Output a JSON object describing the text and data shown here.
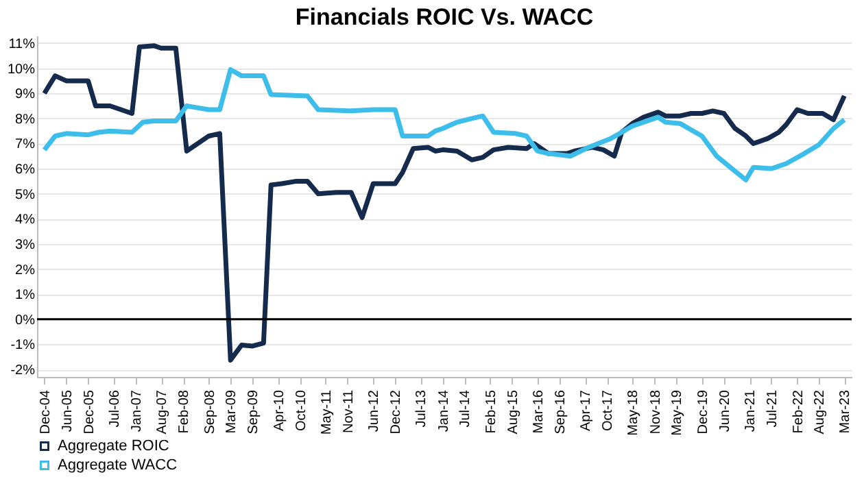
{
  "chart_data": {
    "type": "line",
    "title": "Financials ROIC Vs. WACC",
    "series": [
      {
        "name": "Aggregate ROIC",
        "color": "#152b4e",
        "x": [
          "2004-12",
          "2005-03",
          "2005-06",
          "2005-12",
          "2006-02",
          "2006-06",
          "2006-12",
          "2007-02",
          "2007-06",
          "2007-08",
          "2007-12",
          "2008-03",
          "2008-05",
          "2008-09",
          "2008-12",
          "2009-03",
          "2009-06",
          "2009-09",
          "2009-12",
          "2010-02",
          "2010-05",
          "2010-09",
          "2010-12",
          "2011-03",
          "2011-08",
          "2011-12",
          "2012-03",
          "2012-06",
          "2012-12",
          "2013-02",
          "2013-05",
          "2013-09",
          "2013-11",
          "2014-01",
          "2014-05",
          "2014-09",
          "2014-12",
          "2015-03",
          "2015-07",
          "2015-12",
          "2016-02",
          "2016-06",
          "2016-11",
          "2017-01",
          "2017-06",
          "2017-09",
          "2017-12",
          "2018-02",
          "2018-05",
          "2018-08",
          "2018-12",
          "2019-02",
          "2019-06",
          "2019-09",
          "2019-12",
          "2020-03",
          "2020-06",
          "2020-09",
          "2020-12",
          "2021-02",
          "2021-06",
          "2021-09",
          "2021-11",
          "2022-02",
          "2022-05",
          "2022-09",
          "2022-12",
          "2023-03"
        ],
        "values": [
          9.0,
          9.7,
          9.5,
          9.5,
          8.5,
          8.5,
          8.2,
          10.85,
          10.9,
          10.8,
          10.8,
          6.7,
          6.9,
          7.3,
          7.4,
          -1.63,
          -1.03,
          -1.07,
          -0.95,
          5.35,
          5.4,
          5.5,
          5.5,
          5.0,
          5.05,
          5.05,
          4.05,
          5.4,
          5.4,
          5.85,
          6.8,
          6.85,
          6.7,
          6.75,
          6.7,
          6.35,
          6.45,
          6.75,
          6.85,
          6.8,
          7.0,
          6.6,
          6.6,
          6.7,
          6.85,
          6.75,
          6.5,
          7.45,
          7.8,
          8.05,
          8.25,
          8.1,
          8.1,
          8.2,
          8.2,
          8.3,
          8.2,
          7.6,
          7.3,
          7.0,
          7.2,
          7.45,
          7.75,
          8.35,
          8.2,
          8.2,
          7.95,
          8.9
        ]
      },
      {
        "name": "Aggregate WACC",
        "color": "#3dbde9",
        "x": [
          "2004-12",
          "2005-03",
          "2005-06",
          "2005-12",
          "2006-03",
          "2006-06",
          "2006-12",
          "2007-03",
          "2007-06",
          "2007-12",
          "2008-03",
          "2008-05",
          "2008-09",
          "2008-12",
          "2009-03",
          "2009-06",
          "2009-12",
          "2010-02",
          "2010-12",
          "2011-03",
          "2011-12",
          "2012-06",
          "2012-12",
          "2013-02",
          "2013-09",
          "2013-11",
          "2014-01",
          "2014-05",
          "2014-09",
          "2014-12",
          "2015-03",
          "2015-09",
          "2015-12",
          "2016-03",
          "2016-06",
          "2016-12",
          "2017-05",
          "2017-11",
          "2018-02",
          "2018-05",
          "2018-08",
          "2018-12",
          "2019-02",
          "2019-06",
          "2019-12",
          "2020-04",
          "2020-09",
          "2020-12",
          "2021-02",
          "2021-07",
          "2021-11",
          "2022-04",
          "2022-08",
          "2022-12",
          "2023-03"
        ],
        "values": [
          6.75,
          7.3,
          7.4,
          7.35,
          7.45,
          7.5,
          7.45,
          7.85,
          7.9,
          7.9,
          8.5,
          8.45,
          8.35,
          8.35,
          9.95,
          9.7,
          9.7,
          8.95,
          8.9,
          8.35,
          8.3,
          8.35,
          8.35,
          7.3,
          7.3,
          7.5,
          7.6,
          7.85,
          8.0,
          8.1,
          7.45,
          7.4,
          7.3,
          6.7,
          6.6,
          6.5,
          6.85,
          7.2,
          7.45,
          7.7,
          7.85,
          8.05,
          7.85,
          7.8,
          7.3,
          6.5,
          5.9,
          5.55,
          6.05,
          6.0,
          6.2,
          6.6,
          6.95,
          7.6,
          7.95
        ]
      }
    ],
    "xlim": [
      "2004-10",
      "2023-05"
    ],
    "xticks": [
      {
        "value": "2004-12",
        "label": "Dec-04"
      },
      {
        "value": "2005-06",
        "label": "Jun-05"
      },
      {
        "value": "2005-12",
        "label": "Dec-05"
      },
      {
        "value": "2006-07",
        "label": "Jul-06"
      },
      {
        "value": "2007-01",
        "label": "Jan-07"
      },
      {
        "value": "2007-08",
        "label": "Aug-07"
      },
      {
        "value": "2008-02",
        "label": "Feb-08"
      },
      {
        "value": "2008-09",
        "label": "Sep-08"
      },
      {
        "value": "2009-03",
        "label": "Mar-09"
      },
      {
        "value": "2009-09",
        "label": "Sep-09"
      },
      {
        "value": "2010-04",
        "label": "Apr-10"
      },
      {
        "value": "2010-10",
        "label": "Oct-10"
      },
      {
        "value": "2011-05",
        "label": "May-11"
      },
      {
        "value": "2011-11",
        "label": "Nov-11"
      },
      {
        "value": "2012-06",
        "label": "Jun-12"
      },
      {
        "value": "2012-12",
        "label": "Dec-12"
      },
      {
        "value": "2013-07",
        "label": "Jul-13"
      },
      {
        "value": "2014-01",
        "label": "Jan-14"
      },
      {
        "value": "2014-07",
        "label": "Jul-14"
      },
      {
        "value": "2015-02",
        "label": "Feb-15"
      },
      {
        "value": "2015-08",
        "label": "Aug-15"
      },
      {
        "value": "2016-03",
        "label": "Mar-16"
      },
      {
        "value": "2016-09",
        "label": "Sep-16"
      },
      {
        "value": "2017-04",
        "label": "Apr-17"
      },
      {
        "value": "2017-10",
        "label": "Oct-17"
      },
      {
        "value": "2018-05",
        "label": "May-18"
      },
      {
        "value": "2018-11",
        "label": "Nov-18"
      },
      {
        "value": "2019-05",
        "label": "May-19"
      },
      {
        "value": "2019-12",
        "label": "Dec-19"
      },
      {
        "value": "2020-06",
        "label": "Jun-20"
      },
      {
        "value": "2021-01",
        "label": "Jan-21"
      },
      {
        "value": "2021-07",
        "label": "Jul-21"
      },
      {
        "value": "2022-02",
        "label": "Feb-22"
      },
      {
        "value": "2022-08",
        "label": "Aug-22"
      },
      {
        "value": "2023-03",
        "label": "Mar-23"
      }
    ],
    "ylim": [
      -2.3,
      11.3
    ],
    "yticks": [
      {
        "value": -2,
        "label": "-2%"
      },
      {
        "value": -1,
        "label": "-1%"
      },
      {
        "value": 0,
        "label": "0%"
      },
      {
        "value": 1,
        "label": "1%"
      },
      {
        "value": 2,
        "label": "2%"
      },
      {
        "value": 3,
        "label": "3%"
      },
      {
        "value": 4,
        "label": "4%"
      },
      {
        "value": 5,
        "label": "5%"
      },
      {
        "value": 6,
        "label": "6%"
      },
      {
        "value": 7,
        "label": "7%"
      },
      {
        "value": 8,
        "label": "8%"
      },
      {
        "value": 9,
        "label": "9%"
      },
      {
        "value": 10,
        "label": "10%"
      },
      {
        "value": 11,
        "label": "11%"
      }
    ],
    "ref_lines": [
      {
        "axis": "y",
        "value": 0,
        "color": "#000000"
      }
    ],
    "grid": "y",
    "legend": "bottom left",
    "line_style": "solid",
    "marker": "none"
  }
}
